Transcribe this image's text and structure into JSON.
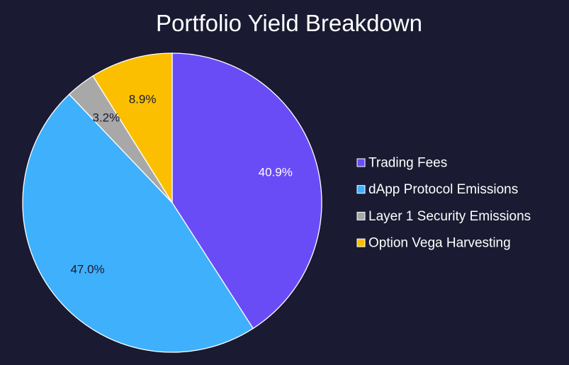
{
  "chart_data": {
    "type": "pie",
    "title": "Portfolio Yield Breakdown",
    "start_angle_deg": 90,
    "direction": "clockwise",
    "slices": [
      {
        "label": "Trading Fees",
        "value": 40.9,
        "display": "40.9%",
        "color": "#6a4cf7",
        "label_color": "#ffffff"
      },
      {
        "label": "dApp Protocol Emissions",
        "value": 47.0,
        "display": "47.0%",
        "color": "#3fb0fb",
        "label_color": "#1a1a32"
      },
      {
        "label": "Layer 1 Security Emissions",
        "value": 3.2,
        "display": "3.2%",
        "color": "#a8a8a8",
        "label_color": "#1a1a32"
      },
      {
        "label": "Option Vega Harvesting",
        "value": 8.9,
        "display": "8.9%",
        "color": "#fcbf00",
        "label_color": "#1a1a32"
      }
    ],
    "legend_position": "right"
  },
  "theme": {
    "background": "#1a1a32",
    "slice_border": "#ffffff"
  }
}
